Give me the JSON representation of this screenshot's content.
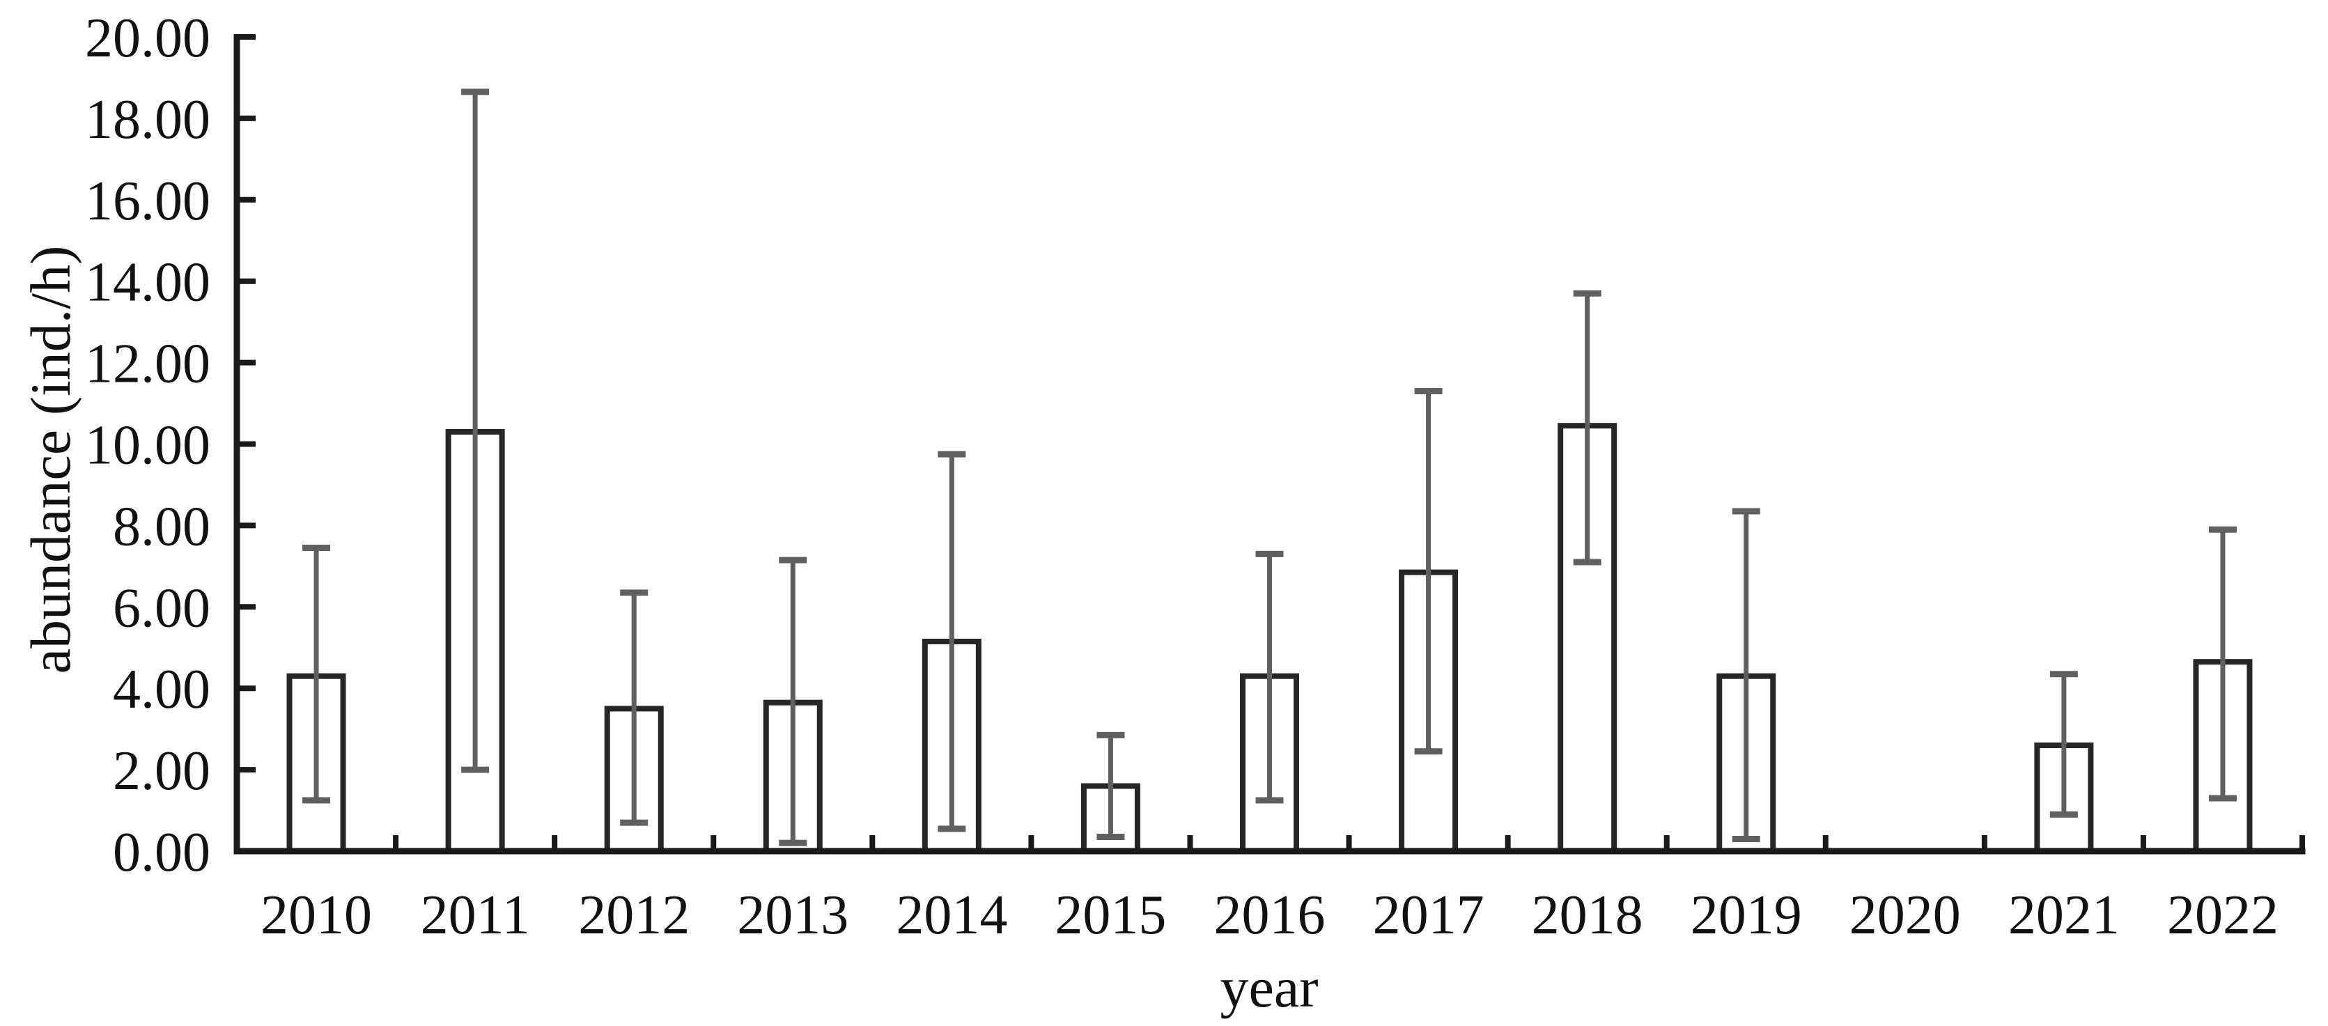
{
  "chart_data": {
    "type": "bar",
    "title": "",
    "xlabel": "year",
    "ylabel": "abundance (ind./h)",
    "ylim": [
      0,
      20
    ],
    "ytick_step": 2,
    "ytick_labels": [
      "0.00",
      "2.00",
      "4.00",
      "6.00",
      "8.00",
      "10.00",
      "12.00",
      "14.00",
      "16.00",
      "18.00",
      "20.00"
    ],
    "grid": false,
    "legend": false,
    "categories": [
      "2010",
      "2011",
      "2012",
      "2013",
      "2014",
      "2015",
      "2016",
      "2017",
      "2018",
      "2019",
      "2020",
      "2021",
      "2022"
    ],
    "values": [
      4.3,
      10.3,
      3.5,
      3.65,
      5.15,
      1.6,
      4.3,
      6.85,
      10.45,
      4.3,
      0,
      2.6,
      4.65
    ],
    "error_upper_cap": [
      7.45,
      18.65,
      6.35,
      7.15,
      9.75,
      2.85,
      7.3,
      11.3,
      13.7,
      8.35,
      null,
      4.35,
      7.9
    ],
    "error_lower_cap": [
      1.25,
      2.0,
      0.7,
      0.2,
      0.55,
      0.35,
      1.25,
      2.45,
      7.1,
      0.3,
      null,
      0.9,
      1.3
    ],
    "colors": {
      "bar_fill": "#ffffff",
      "bar_stroke": "#262626",
      "error_bar": "#606060",
      "axis": "#1a1a1a",
      "text": "#111111"
    }
  }
}
